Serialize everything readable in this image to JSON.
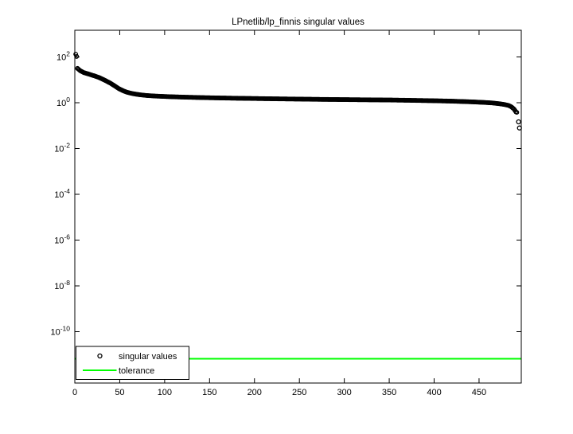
{
  "window": {
    "background": "#ffffff"
  },
  "chart_data": {
    "type": "scatter",
    "title": "LPnetlib/lp_finnis singular values",
    "xlabel": "",
    "ylabel": "",
    "grid": false,
    "axis_box": true,
    "xlim": [
      0,
      497
    ],
    "x_ticks": [
      0,
      50,
      100,
      150,
      200,
      250,
      300,
      350,
      400,
      450
    ],
    "y_scale": "log10",
    "ylim_log10": [
      -12.24,
      3.17
    ],
    "y_tick_exponents": [
      2,
      0,
      -2,
      -4,
      -6,
      -8,
      -10
    ],
    "y_tick_base": "10",
    "colors": {
      "markers": "#000000",
      "tolerance": "#00ff00",
      "axis": "#000000"
    },
    "legend": {
      "position": "southwest",
      "entries": [
        {
          "label": "singular values",
          "sample": "circle-marker",
          "color": "#000000"
        },
        {
          "label": "tolerance",
          "sample": "line",
          "color": "#00ff00"
        }
      ]
    },
    "series": [
      {
        "name": "singular values",
        "type": "scatter",
        "marker": "o",
        "n_points": 497,
        "note_control_points": "piecewise-linear estimate in (index, sigma), log-interpolated for all integer indices 1..492",
        "control_points": [
          [
            1,
            132
          ],
          [
            2,
            105
          ],
          [
            3,
            31.6
          ],
          [
            6,
            25.1
          ],
          [
            10,
            20.7
          ],
          [
            14,
            18.6
          ],
          [
            18,
            16.6
          ],
          [
            22,
            14.8
          ],
          [
            27,
            12.6
          ],
          [
            31,
            10.7
          ],
          [
            36,
            8.5
          ],
          [
            40,
            7.0
          ],
          [
            45,
            5.25
          ],
          [
            49,
            4.12
          ],
          [
            54,
            3.31
          ],
          [
            58,
            2.88
          ],
          [
            63,
            2.57
          ],
          [
            67,
            2.4
          ],
          [
            72,
            2.24
          ],
          [
            80,
            2.07
          ],
          [
            90,
            1.95
          ],
          [
            105,
            1.84
          ],
          [
            120,
            1.76
          ],
          [
            140,
            1.68
          ],
          [
            160,
            1.62
          ],
          [
            180,
            1.57
          ],
          [
            200,
            1.53
          ],
          [
            225,
            1.48
          ],
          [
            250,
            1.44
          ],
          [
            275,
            1.4
          ],
          [
            300,
            1.37
          ],
          [
            325,
            1.34
          ],
          [
            350,
            1.315
          ],
          [
            375,
            1.27
          ],
          [
            400,
            1.22
          ],
          [
            420,
            1.17
          ],
          [
            440,
            1.1
          ],
          [
            455,
            1.035
          ],
          [
            465,
            0.977
          ],
          [
            472,
            0.912
          ],
          [
            478,
            0.841
          ],
          [
            483,
            0.759
          ],
          [
            486,
            0.661
          ],
          [
            489,
            0.525
          ],
          [
            491,
            0.398
          ],
          [
            492,
            0.38
          ]
        ],
        "outlier_points": [
          [
            494,
            0.146
          ],
          [
            495,
            0.079
          ]
        ]
      },
      {
        "name": "tolerance",
        "type": "hline",
        "value": 6.6e-12,
        "color": "#00ff00"
      }
    ]
  }
}
